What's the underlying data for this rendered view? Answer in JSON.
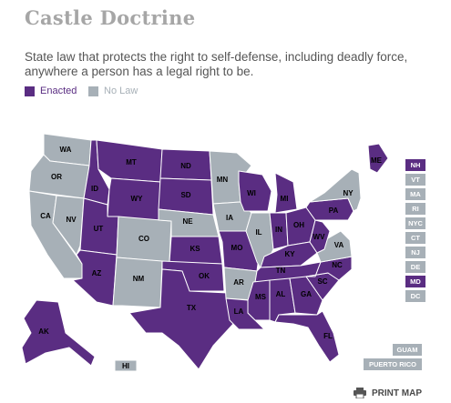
{
  "title": "Castle Doctrine",
  "subtitle": "State law that protects the right to self-defense, including deadly force, anywhere a person has a legal right to be.",
  "colors": {
    "enacted": "#5a2d82",
    "no_law": "#a7b0b7",
    "title": "#a6a6a6"
  },
  "legend": [
    {
      "label": "Enacted",
      "status": "enacted"
    },
    {
      "label": "No Law",
      "status": "no_law"
    }
  ],
  "states": [
    {
      "abbr": "WA",
      "status": "no_law"
    },
    {
      "abbr": "OR",
      "status": "no_law"
    },
    {
      "abbr": "CA",
      "status": "no_law"
    },
    {
      "abbr": "NV",
      "status": "no_law"
    },
    {
      "abbr": "ID",
      "status": "enacted"
    },
    {
      "abbr": "MT",
      "status": "enacted"
    },
    {
      "abbr": "WY",
      "status": "enacted"
    },
    {
      "abbr": "UT",
      "status": "enacted"
    },
    {
      "abbr": "AZ",
      "status": "enacted"
    },
    {
      "abbr": "CO",
      "status": "no_law"
    },
    {
      "abbr": "NM",
      "status": "no_law"
    },
    {
      "abbr": "ND",
      "status": "enacted"
    },
    {
      "abbr": "SD",
      "status": "enacted"
    },
    {
      "abbr": "NE",
      "status": "no_law"
    },
    {
      "abbr": "KS",
      "status": "enacted"
    },
    {
      "abbr": "OK",
      "status": "enacted"
    },
    {
      "abbr": "TX",
      "status": "enacted"
    },
    {
      "abbr": "MN",
      "status": "no_law"
    },
    {
      "abbr": "IA",
      "status": "no_law"
    },
    {
      "abbr": "MO",
      "status": "enacted"
    },
    {
      "abbr": "AR",
      "status": "no_law"
    },
    {
      "abbr": "LA",
      "status": "enacted"
    },
    {
      "abbr": "WI",
      "status": "enacted"
    },
    {
      "abbr": "IL",
      "status": "no_law"
    },
    {
      "abbr": "MI",
      "status": "enacted"
    },
    {
      "abbr": "IN",
      "status": "enacted"
    },
    {
      "abbr": "OH",
      "status": "enacted"
    },
    {
      "abbr": "KY",
      "status": "enacted"
    },
    {
      "abbr": "TN",
      "status": "enacted"
    },
    {
      "abbr": "MS",
      "status": "enacted"
    },
    {
      "abbr": "AL",
      "status": "enacted"
    },
    {
      "abbr": "GA",
      "status": "enacted"
    },
    {
      "abbr": "FL",
      "status": "enacted"
    },
    {
      "abbr": "SC",
      "status": "enacted"
    },
    {
      "abbr": "NC",
      "status": "enacted"
    },
    {
      "abbr": "VA",
      "status": "no_law"
    },
    {
      "abbr": "WV",
      "status": "enacted"
    },
    {
      "abbr": "PA",
      "status": "enacted"
    },
    {
      "abbr": "NY",
      "status": "no_law"
    },
    {
      "abbr": "ME",
      "status": "enacted"
    },
    {
      "abbr": "AK",
      "status": "enacted"
    },
    {
      "abbr": "HI",
      "status": "no_law"
    }
  ],
  "northeast_boxes": [
    {
      "abbr": "NH",
      "status": "enacted"
    },
    {
      "abbr": "VT",
      "status": "no_law"
    },
    {
      "abbr": "MA",
      "status": "no_law"
    },
    {
      "abbr": "RI",
      "status": "no_law"
    },
    {
      "abbr": "NYC",
      "status": "no_law"
    },
    {
      "abbr": "CT",
      "status": "no_law"
    },
    {
      "abbr": "NJ",
      "status": "no_law"
    },
    {
      "abbr": "DE",
      "status": "no_law"
    },
    {
      "abbr": "MD",
      "status": "enacted"
    },
    {
      "abbr": "DC",
      "status": "no_law"
    }
  ],
  "territories": [
    {
      "label": "GUAM",
      "status": "no_law"
    },
    {
      "label": "PUERTO RICO",
      "status": "no_law"
    }
  ],
  "print_map": {
    "label": "PRINT MAP",
    "icon": "printer-icon"
  }
}
